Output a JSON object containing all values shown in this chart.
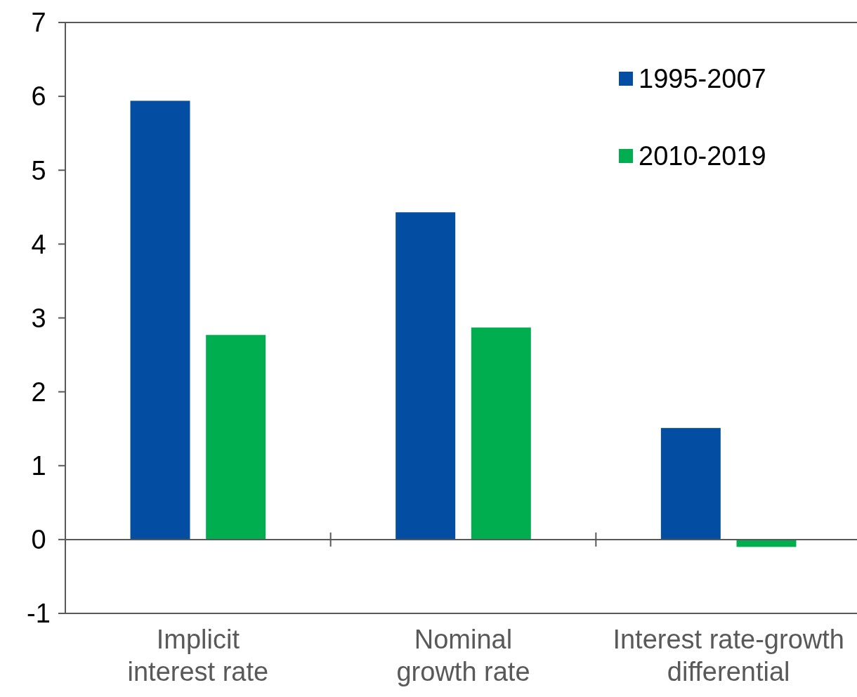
{
  "chart_data": {
    "type": "bar",
    "categories": [
      "Implicit\ninterest rate",
      "Nominal\ngrowth rate",
      "Interest rate-growth\ndifferential"
    ],
    "series": [
      {
        "name": "1995-2007",
        "color": "#034ea2",
        "values": [
          5.94,
          4.43,
          1.51
        ]
      },
      {
        "name": "2010-2019",
        "color": "#00ae4f",
        "values": [
          2.77,
          2.87,
          -0.1
        ]
      }
    ],
    "ylim": [
      -1,
      7
    ],
    "yticks": [
      -1,
      0,
      1,
      2,
      3,
      4,
      5,
      6,
      7
    ],
    "legend": "top right"
  }
}
